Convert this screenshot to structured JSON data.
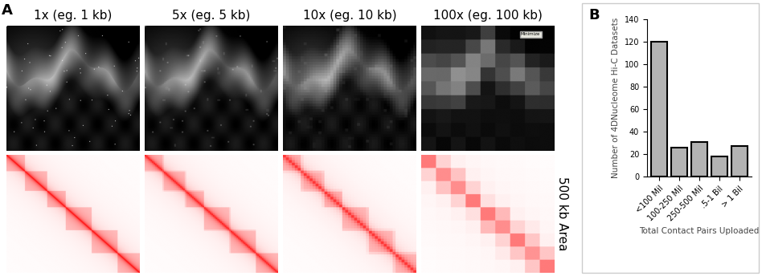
{
  "figure": {
    "panel_labels": [
      "A",
      "B"
    ]
  },
  "panel_a": {
    "column_titles": [
      "1x (eg. 1 kb)",
      "5x (eg. 5 kb)",
      "10x (eg. 10 kb)",
      "100x (eg. 100 kb)"
    ],
    "row_label": "500 kb Area",
    "overlay_text": "Minimize"
  },
  "chart_data": {
    "type": "bar",
    "categories": [
      "<100 Mil",
      "100-250 Mil",
      "250-500 Mil",
      ".5-1 Bil",
      "> 1 Bil"
    ],
    "values": [
      120,
      26,
      31,
      18,
      27
    ],
    "color": "#b3b3b3",
    "x_label": "Total Contact Pairs Uploaded",
    "y_label": "Number of 4DNucleome Hi-C Datasets",
    "ylim": [
      0,
      140
    ],
    "yticks": [
      0,
      20,
      40,
      60,
      80,
      100,
      120,
      140
    ],
    "grid": false
  }
}
